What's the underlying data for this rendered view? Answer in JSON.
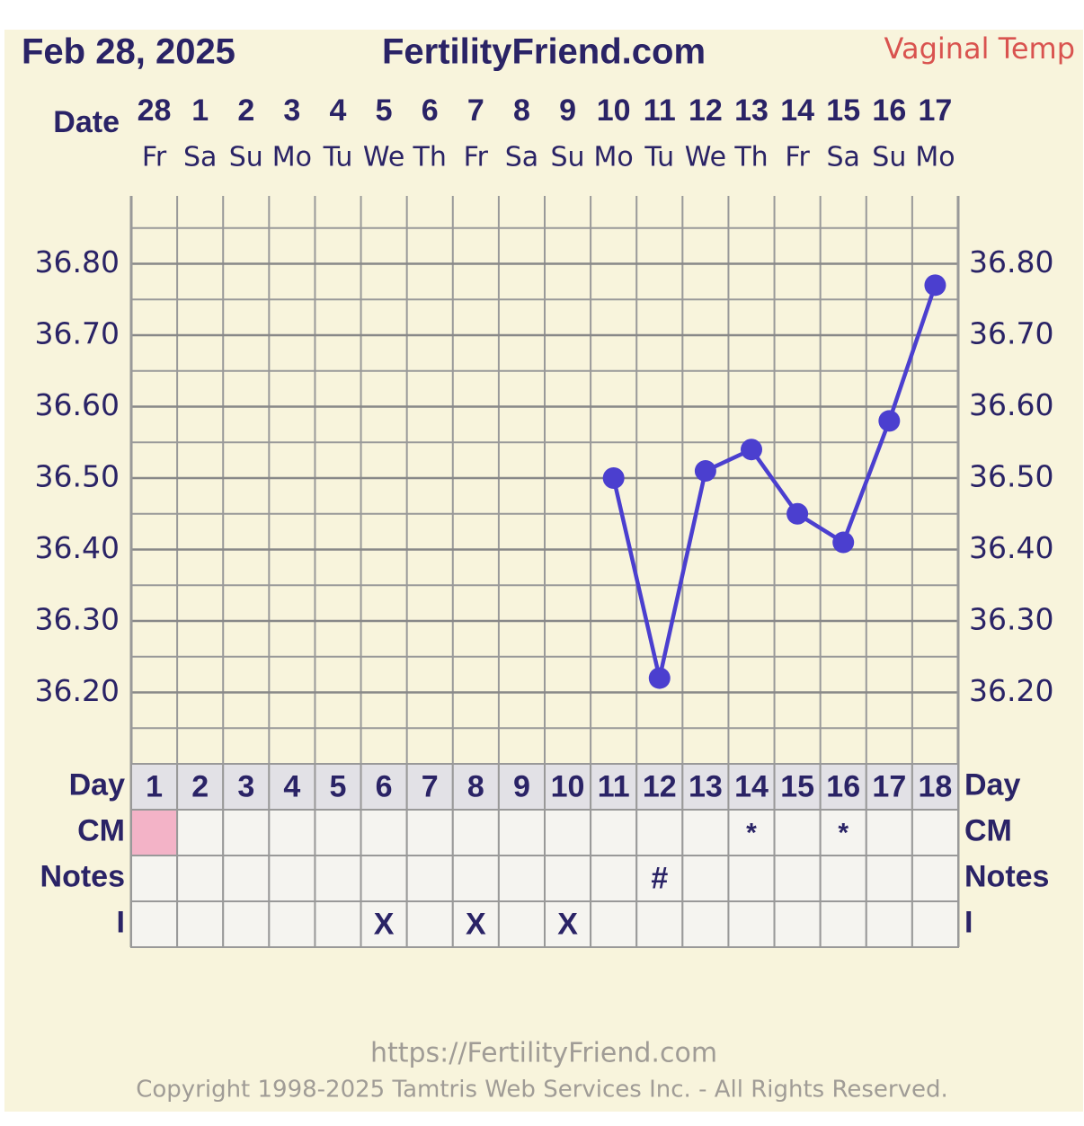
{
  "chart_data": {
    "type": "line",
    "title": "Feb 28, 2025",
    "subtitle": "FertilityFriend.com",
    "annotation": "Vaginal Temp",
    "date_label": "Date",
    "categories": [
      "28",
      "1",
      "2",
      "3",
      "4",
      "5",
      "6",
      "7",
      "8",
      "9",
      "10",
      "11",
      "12",
      "13",
      "14",
      "15",
      "16",
      "17"
    ],
    "weekdays": [
      "Fr",
      "Sa",
      "Su",
      "Mo",
      "Tu",
      "We",
      "Th",
      "Fr",
      "Sa",
      "Su",
      "Mo",
      "Tu",
      "We",
      "Th",
      "Fr",
      "Sa",
      "Su",
      "Mo"
    ],
    "series": [
      {
        "name": "Vaginal Temp",
        "color": "#4b3fcf",
        "values": [
          null,
          null,
          null,
          null,
          null,
          null,
          null,
          null,
          null,
          null,
          36.5,
          36.22,
          36.51,
          36.54,
          36.45,
          36.41,
          36.58,
          36.77
        ]
      }
    ],
    "ylim": [
      36.1,
      36.9
    ],
    "yticks": [
      {
        "value": 36.2,
        "label": "36.20"
      },
      {
        "value": 36.3,
        "label": "36.30"
      },
      {
        "value": 36.4,
        "label": "36.40"
      },
      {
        "value": 36.5,
        "label": "36.50"
      },
      {
        "value": 36.6,
        "label": "36.60"
      },
      {
        "value": 36.7,
        "label": "36.70"
      },
      {
        "value": 36.8,
        "label": "36.80"
      }
    ],
    "minor_yticks": [
      36.15,
      36.25,
      36.35,
      36.45,
      36.55,
      36.65,
      36.75,
      36.85
    ],
    "grid": true,
    "day_label": "Day",
    "days": [
      1,
      2,
      3,
      4,
      5,
      6,
      7,
      8,
      9,
      10,
      11,
      12,
      13,
      14,
      15,
      16,
      17,
      18
    ],
    "cm_label": "CM",
    "cm": [
      null,
      null,
      null,
      null,
      null,
      null,
      null,
      null,
      null,
      null,
      null,
      null,
      null,
      "*",
      null,
      "*",
      null,
      null
    ],
    "cm_colors": [
      "#f3b3c7",
      null,
      null,
      null,
      null,
      null,
      null,
      null,
      null,
      null,
      null,
      null,
      null,
      null,
      null,
      null,
      null,
      null
    ],
    "notes_label": "Notes",
    "notes": [
      null,
      null,
      null,
      null,
      null,
      null,
      null,
      null,
      null,
      null,
      null,
      "#",
      null,
      null,
      null,
      null,
      null,
      null
    ],
    "i_label": "I",
    "i": [
      null,
      null,
      null,
      null,
      null,
      "X",
      null,
      "X",
      null,
      "X",
      null,
      null,
      null,
      null,
      null,
      null,
      null,
      null
    ],
    "footer": [
      "https://FertilityFriend.com",
      "Copyright 1998-2025 Tamtris Web Services Inc. - All Rights Reserved."
    ]
  }
}
